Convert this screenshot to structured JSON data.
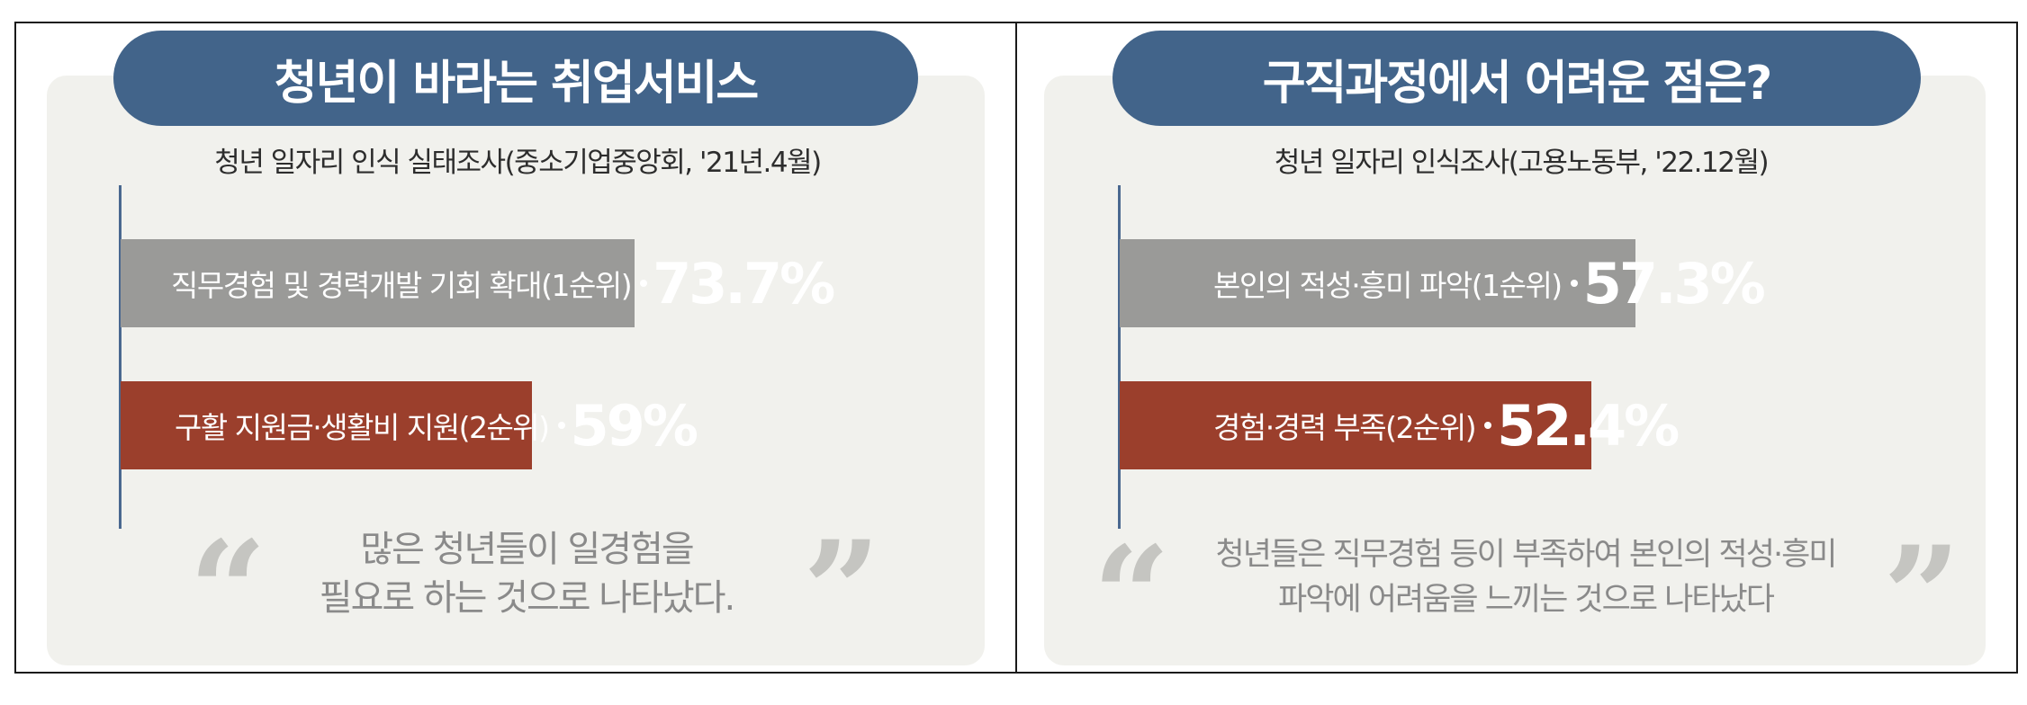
{
  "colors": {
    "title_bg": "#42648a",
    "rank1_bar": "#9a9a98",
    "rank2_bar": "#9b3f2c",
    "panel_bg": "#f1f1ed",
    "quote_text": "#8a8a8a"
  },
  "chart_data": [
    {
      "type": "bar",
      "orientation": "horizontal",
      "title": "청년이 바라는 취업서비스",
      "subtitle": "청년 일자리 인식 실태조사(중소기업중앙회, '21년.4월)",
      "unit": "%",
      "categories": [
        "직무경험 및 경력개발 기회 확대(1순위)",
        "구활 지원금·생활비 지원(2순위)"
      ],
      "values": [
        73.7,
        59
      ],
      "value_labels": [
        "73.7%",
        "59%"
      ],
      "bar_colors": [
        "#9a9a98",
        "#9b3f2c"
      ],
      "quote_lines": [
        "많은 청년들이 일경험을",
        "필요로 하는 것으로 나타났다."
      ]
    },
    {
      "type": "bar",
      "orientation": "horizontal",
      "title": "구직과정에서 어려운 점은?",
      "subtitle": "청년 일자리 인식조사(고용노동부, '22.12월)",
      "unit": "%",
      "categories": [
        "본인의 적성·흥미 파악(1순위)",
        "경험·경력 부족(2순위)"
      ],
      "values": [
        57.3,
        52.4
      ],
      "value_labels": [
        "57.3%",
        "52.4%"
      ],
      "bar_colors": [
        "#9a9a98",
        "#9b3f2c"
      ],
      "quote_lines": [
        "청년들은 직무경험 등이 부족하여 본인의 적성·흥미",
        "파악에 어려움을 느끼는 것으로 나타났다"
      ]
    }
  ]
}
